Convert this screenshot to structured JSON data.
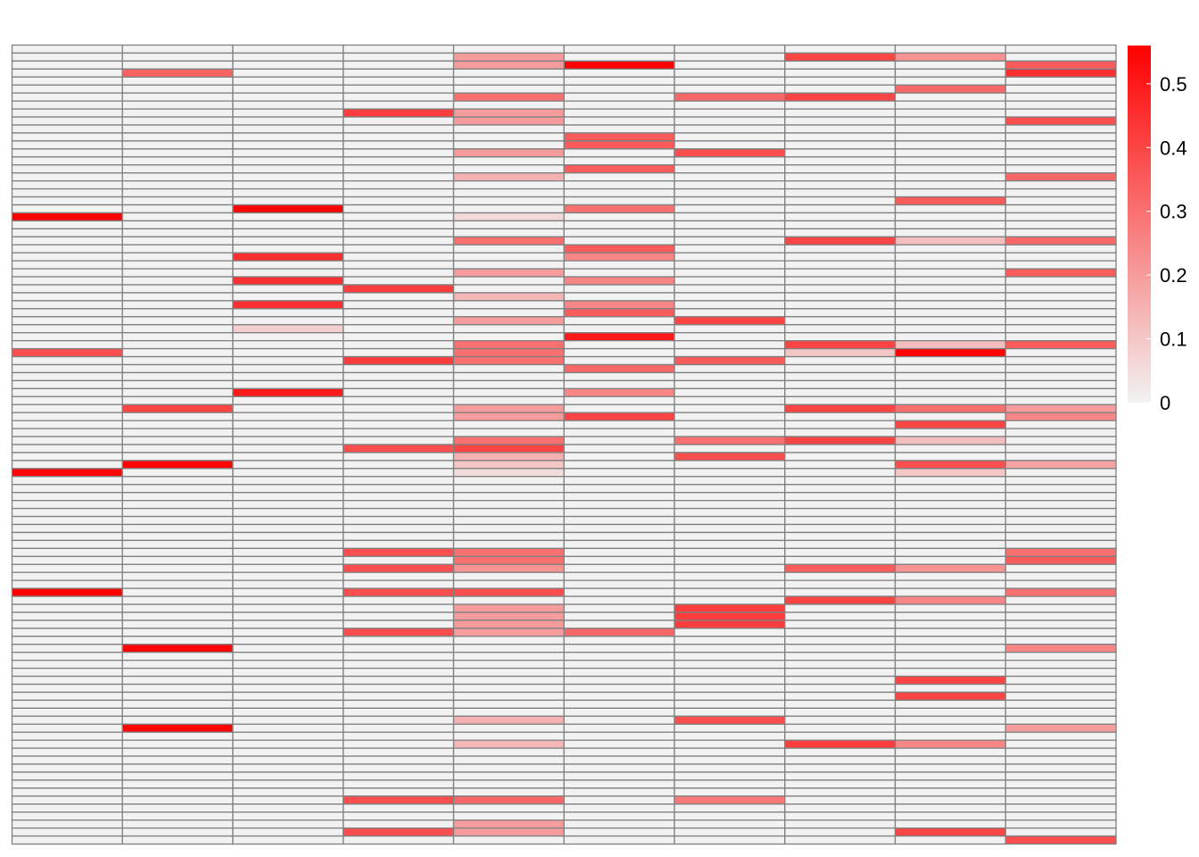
{
  "chart_data": {
    "type": "heatmap",
    "n_rows": 100,
    "n_cols": 10,
    "colors": {
      "low": "#f2f2f2",
      "high": "#ff0000",
      "grid": "#808080",
      "background": "#ffffff"
    },
    "scale_max": 0.56,
    "legend": {
      "position": "right",
      "ticks": [
        {
          "value": 0,
          "label": "0"
        },
        {
          "value": 0.1,
          "label": "0.1"
        },
        {
          "value": 0.2,
          "label": "0.2"
        },
        {
          "value": 0.3,
          "label": "0.3"
        },
        {
          "value": 0.4,
          "label": "0.4"
        },
        {
          "value": 0.5,
          "label": "0.5"
        }
      ]
    },
    "cells": [
      [
        0,
        21,
        0.56
      ],
      [
        0,
        38,
        0.38
      ],
      [
        0,
        53,
        0.55
      ],
      [
        0,
        68,
        0.56
      ],
      [
        1,
        3,
        0.33
      ],
      [
        1,
        45,
        0.4
      ],
      [
        1,
        52,
        0.55
      ],
      [
        1,
        75,
        0.55
      ],
      [
        1,
        85,
        0.55
      ],
      [
        2,
        20,
        0.55
      ],
      [
        2,
        26,
        0.45
      ],
      [
        2,
        29,
        0.45
      ],
      [
        2,
        32,
        0.45
      ],
      [
        2,
        35,
        0.08
      ],
      [
        2,
        43,
        0.5
      ],
      [
        3,
        8,
        0.42
      ],
      [
        3,
        30,
        0.42
      ],
      [
        3,
        39,
        0.42
      ],
      [
        3,
        50,
        0.38
      ],
      [
        3,
        63,
        0.38
      ],
      [
        3,
        65,
        0.38
      ],
      [
        3,
        68,
        0.38
      ],
      [
        3,
        73,
        0.38
      ],
      [
        3,
        94,
        0.38
      ],
      [
        3,
        98,
        0.38
      ],
      [
        4,
        1,
        0.2
      ],
      [
        4,
        2,
        0.2
      ],
      [
        4,
        6,
        0.3
      ],
      [
        4,
        8,
        0.2
      ],
      [
        4,
        9,
        0.2
      ],
      [
        4,
        13,
        0.2
      ],
      [
        4,
        16,
        0.15
      ],
      [
        4,
        21,
        0.06
      ],
      [
        4,
        24,
        0.3
      ],
      [
        4,
        28,
        0.2
      ],
      [
        4,
        31,
        0.14
      ],
      [
        4,
        34,
        0.2
      ],
      [
        4,
        37,
        0.3
      ],
      [
        4,
        38,
        0.3
      ],
      [
        4,
        39,
        0.3
      ],
      [
        4,
        45,
        0.2
      ],
      [
        4,
        46,
        0.2
      ],
      [
        4,
        49,
        0.3
      ],
      [
        4,
        50,
        0.4
      ],
      [
        4,
        51,
        0.15
      ],
      [
        4,
        52,
        0.1
      ],
      [
        4,
        53,
        0.05
      ],
      [
        4,
        63,
        0.3
      ],
      [
        4,
        64,
        0.3
      ],
      [
        4,
        65,
        0.22
      ],
      [
        4,
        68,
        0.38
      ],
      [
        4,
        70,
        0.2
      ],
      [
        4,
        71,
        0.2
      ],
      [
        4,
        72,
        0.2
      ],
      [
        4,
        73,
        0.2
      ],
      [
        4,
        84,
        0.15
      ],
      [
        4,
        87,
        0.14
      ],
      [
        4,
        94,
        0.32
      ],
      [
        4,
        97,
        0.2
      ],
      [
        4,
        98,
        0.2
      ],
      [
        5,
        2,
        0.56
      ],
      [
        5,
        11,
        0.35
      ],
      [
        5,
        12,
        0.35
      ],
      [
        5,
        15,
        0.35
      ],
      [
        5,
        20,
        0.3
      ],
      [
        5,
        25,
        0.35
      ],
      [
        5,
        26,
        0.25
      ],
      [
        5,
        29,
        0.25
      ],
      [
        5,
        32,
        0.25
      ],
      [
        5,
        33,
        0.35
      ],
      [
        5,
        36,
        0.5
      ],
      [
        5,
        40,
        0.32
      ],
      [
        5,
        43,
        0.25
      ],
      [
        5,
        46,
        0.4
      ],
      [
        5,
        73,
        0.32
      ],
      [
        6,
        6,
        0.32
      ],
      [
        6,
        13,
        0.38
      ],
      [
        6,
        34,
        0.4
      ],
      [
        6,
        39,
        0.35
      ],
      [
        6,
        49,
        0.3
      ],
      [
        6,
        51,
        0.38
      ],
      [
        6,
        70,
        0.42
      ],
      [
        6,
        71,
        0.42
      ],
      [
        6,
        72,
        0.42
      ],
      [
        6,
        84,
        0.38
      ],
      [
        6,
        94,
        0.28
      ],
      [
        7,
        1,
        0.4
      ],
      [
        7,
        6,
        0.4
      ],
      [
        7,
        24,
        0.4
      ],
      [
        7,
        37,
        0.4
      ],
      [
        7,
        38,
        0.1
      ],
      [
        7,
        45,
        0.4
      ],
      [
        7,
        49,
        0.4
      ],
      [
        7,
        65,
        0.35
      ],
      [
        7,
        69,
        0.4
      ],
      [
        7,
        87,
        0.42
      ],
      [
        8,
        1,
        0.22
      ],
      [
        8,
        5,
        0.32
      ],
      [
        8,
        19,
        0.35
      ],
      [
        8,
        24,
        0.12
      ],
      [
        8,
        37,
        0.12
      ],
      [
        8,
        38,
        0.56
      ],
      [
        8,
        45,
        0.3
      ],
      [
        8,
        47,
        0.4
      ],
      [
        8,
        49,
        0.12
      ],
      [
        8,
        52,
        0.38
      ],
      [
        8,
        53,
        0.1
      ],
      [
        8,
        65,
        0.22
      ],
      [
        8,
        69,
        0.25
      ],
      [
        8,
        79,
        0.4
      ],
      [
        8,
        81,
        0.4
      ],
      [
        8,
        87,
        0.25
      ],
      [
        8,
        98,
        0.4
      ],
      [
        9,
        2,
        0.35
      ],
      [
        9,
        3,
        0.45
      ],
      [
        9,
        9,
        0.38
      ],
      [
        9,
        16,
        0.32
      ],
      [
        9,
        24,
        0.32
      ],
      [
        9,
        28,
        0.35
      ],
      [
        9,
        37,
        0.35
      ],
      [
        9,
        45,
        0.2
      ],
      [
        9,
        46,
        0.25
      ],
      [
        9,
        52,
        0.18
      ],
      [
        9,
        63,
        0.3
      ],
      [
        9,
        64,
        0.35
      ],
      [
        9,
        68,
        0.3
      ],
      [
        9,
        75,
        0.25
      ],
      [
        9,
        85,
        0.2
      ],
      [
        9,
        99,
        0.38
      ]
    ]
  }
}
